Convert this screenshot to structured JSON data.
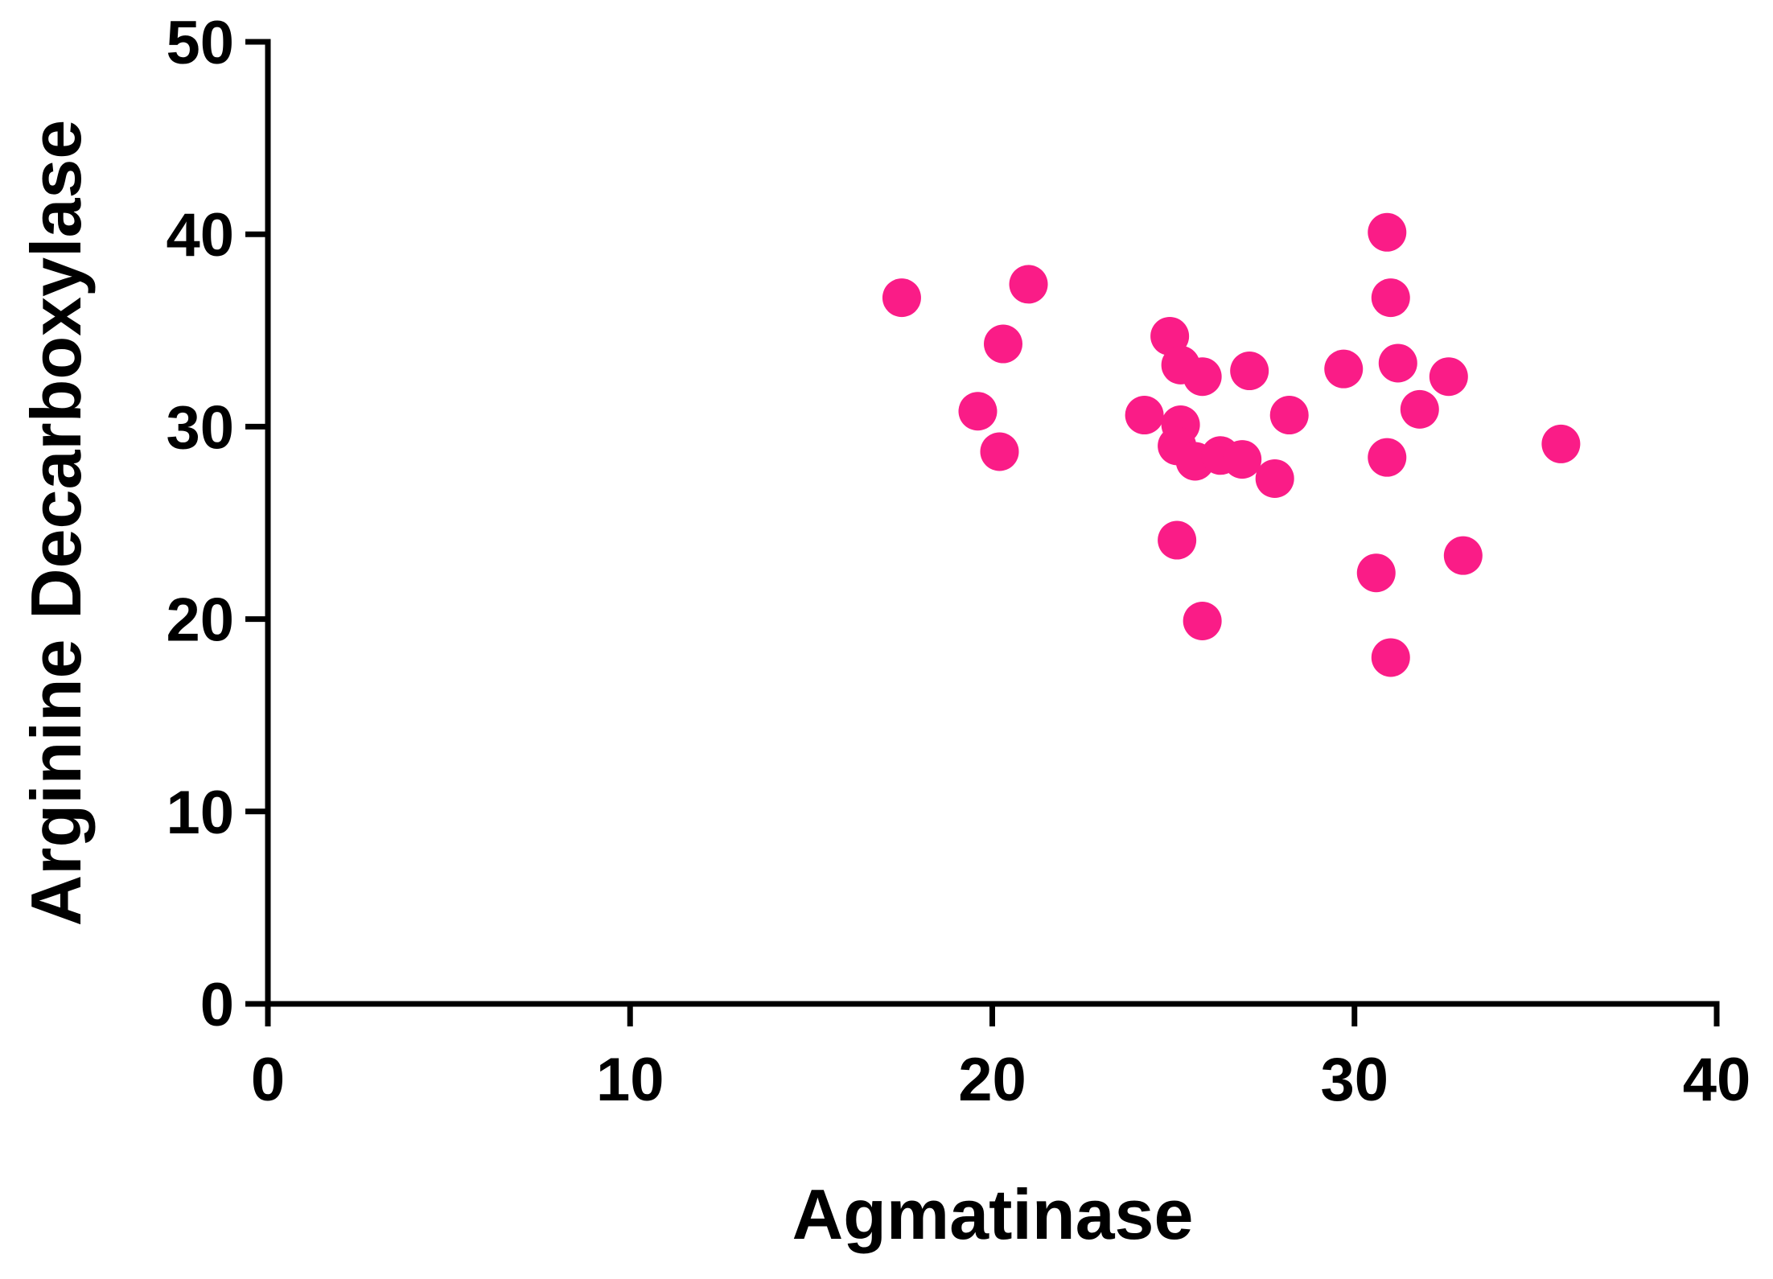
{
  "chart_data": {
    "type": "scatter",
    "x_label": "Agmatinase",
    "y_label": "Arginine Decarboxylase",
    "color": "#fa1c87",
    "x": [
      17.5,
      21.0,
      20.3,
      19.6,
      20.2,
      24.9,
      25.2,
      25.8,
      27.1,
      24.2,
      25.2,
      25.1,
      25.6,
      26.3,
      26.9,
      27.8,
      28.2,
      25.1,
      25.8,
      29.7,
      30.9,
      31.0,
      31.2,
      31.8,
      32.6,
      30.9,
      30.6,
      31.0,
      33.0,
      35.7
    ],
    "values": [
      36.7,
      37.4,
      34.3,
      30.8,
      28.7,
      34.7,
      33.2,
      32.6,
      32.9,
      30.6,
      30.1,
      29.0,
      28.2,
      28.5,
      28.3,
      27.3,
      30.6,
      24.1,
      19.9,
      33.0,
      40.1,
      36.7,
      33.3,
      30.9,
      32.6,
      28.4,
      22.4,
      18.0,
      23.3,
      29.1
    ],
    "xlim": [
      0,
      40
    ],
    "xticks": [
      0,
      10,
      20,
      30,
      40
    ],
    "ylim": [
      0,
      50
    ],
    "yticks": [
      0,
      10,
      20,
      30,
      40,
      50
    ]
  }
}
